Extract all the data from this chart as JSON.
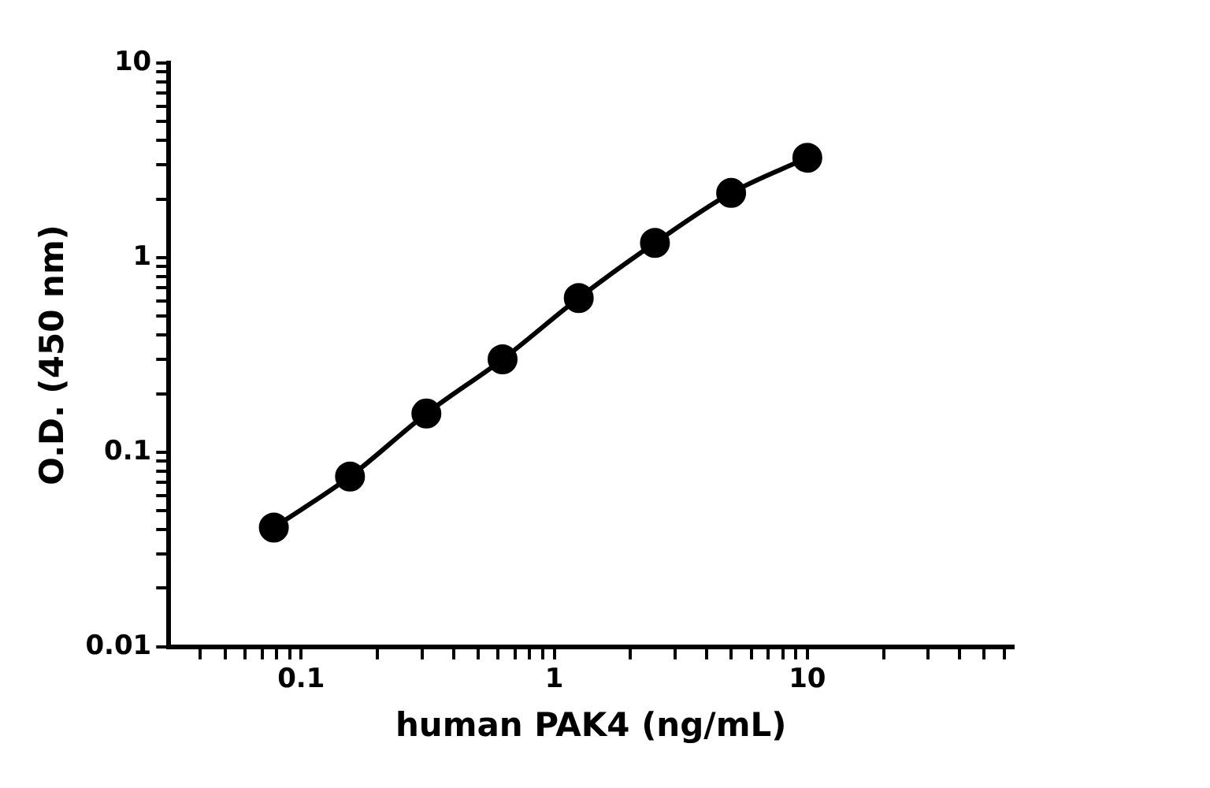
{
  "chart_data": {
    "type": "line",
    "xlabel": "human PAK4 (ng/mL)",
    "ylabel": "O.D. (450 nm)",
    "log": "xy",
    "marker": "circle",
    "line_style": "solid",
    "legend": false,
    "grid": false,
    "xlim": [
      0.03,
      65
    ],
    "ylim": [
      0.01,
      10
    ],
    "xticks": [
      {
        "value": 0.04,
        "label": null
      },
      {
        "value": 0.05,
        "label": null
      },
      {
        "value": 0.06,
        "label": null
      },
      {
        "value": 0.07,
        "label": null
      },
      {
        "value": 0.08,
        "label": null
      },
      {
        "value": 0.09,
        "label": null
      },
      0.1,
      {
        "value": 0.2,
        "label": null
      },
      {
        "value": 0.3,
        "label": null
      },
      {
        "value": 0.4,
        "label": null
      },
      {
        "value": 0.5,
        "label": null
      },
      {
        "value": 0.6,
        "label": null
      },
      {
        "value": 0.7,
        "label": null
      },
      {
        "value": 0.8,
        "label": null
      },
      {
        "value": 0.9,
        "label": null
      },
      1,
      {
        "value": 2,
        "label": null
      },
      {
        "value": 3,
        "label": null
      },
      {
        "value": 4,
        "label": null
      },
      {
        "value": 5,
        "label": null
      },
      {
        "value": 6,
        "label": null
      },
      {
        "value": 7,
        "label": null
      },
      {
        "value": 8,
        "label": null
      },
      {
        "value": 9,
        "label": null
      },
      10,
      {
        "value": 20,
        "label": null
      },
      {
        "value": 30,
        "label": null
      },
      {
        "value": 40,
        "label": null
      },
      {
        "value": 50,
        "label": null
      },
      {
        "value": 60,
        "label": null
      }
    ],
    "yticks": [
      0.01,
      {
        "value": 0.02,
        "label": null
      },
      {
        "value": 0.03,
        "label": null
      },
      {
        "value": 0.04,
        "label": null
      },
      {
        "value": 0.05,
        "label": null
      },
      {
        "value": 0.06,
        "label": null
      },
      {
        "value": 0.07,
        "label": null
      },
      {
        "value": 0.08,
        "label": null
      },
      {
        "value": 0.09,
        "label": null
      },
      0.1,
      {
        "value": 0.2,
        "label": null
      },
      {
        "value": 0.3,
        "label": null
      },
      {
        "value": 0.4,
        "label": null
      },
      {
        "value": 0.5,
        "label": null
      },
      {
        "value": 0.6,
        "label": null
      },
      {
        "value": 0.7,
        "label": null
      },
      {
        "value": 0.8,
        "label": null
      },
      {
        "value": 0.9,
        "label": null
      },
      1,
      {
        "value": 2,
        "label": null
      },
      {
        "value": 3,
        "label": null
      },
      {
        "value": 4,
        "label": null
      },
      {
        "value": 5,
        "label": null
      },
      {
        "value": 6,
        "label": null
      },
      {
        "value": 7,
        "label": null
      },
      {
        "value": 8,
        "label": null
      },
      {
        "value": 9,
        "label": null
      },
      10
    ],
    "x": [
      0.078,
      0.156,
      0.3125,
      0.625,
      1.25,
      2.5,
      5,
      10
    ],
    "series": [
      {
        "color": "#000000",
        "values": [
          0.041,
          0.075,
          0.158,
          0.3,
          0.62,
          1.19,
          2.15,
          3.26
        ]
      }
    ]
  }
}
